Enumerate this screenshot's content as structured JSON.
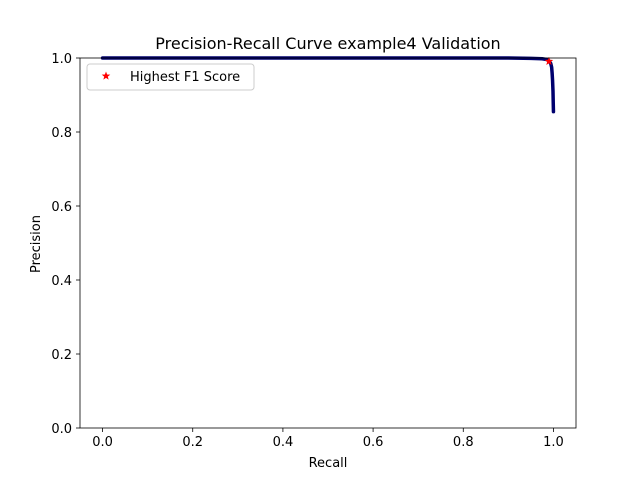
{
  "chart_data": {
    "type": "line",
    "title": "Precision-Recall Curve example4 Validation",
    "xlabel": "Recall",
    "ylabel": "Precision",
    "xlim": [
      -0.05,
      1.05
    ],
    "ylim": [
      0.0,
      1.0
    ],
    "xticks": [
      "0.0",
      "0.2",
      "0.4",
      "0.6",
      "0.8",
      "1.0"
    ],
    "yticks": [
      "0.0",
      "0.2",
      "0.4",
      "0.6",
      "0.8",
      "1.0"
    ],
    "grid": false,
    "legend": {
      "position": "upper-left",
      "entries": [
        "Highest F1 Score"
      ]
    },
    "series": [
      {
        "kind": "line",
        "color": "#00006e",
        "x": [
          0.0,
          0.2,
          0.4,
          0.6,
          0.8,
          0.9,
          0.95,
          0.975,
          0.985,
          0.99,
          0.994,
          0.996,
          0.997,
          0.998,
          0.999,
          0.9995,
          1.0
        ],
        "y": [
          1.0,
          1.0,
          1.0,
          1.0,
          1.0,
          1.0,
          0.999,
          0.998,
          0.996,
          0.992,
          0.985,
          0.975,
          0.96,
          0.94,
          0.91,
          0.88,
          0.855
        ]
      },
      {
        "name": "Highest F1 Score",
        "kind": "marker",
        "marker": "star",
        "color": "#ff0000",
        "x": [
          0.99
        ],
        "y": [
          0.991
        ]
      }
    ]
  }
}
